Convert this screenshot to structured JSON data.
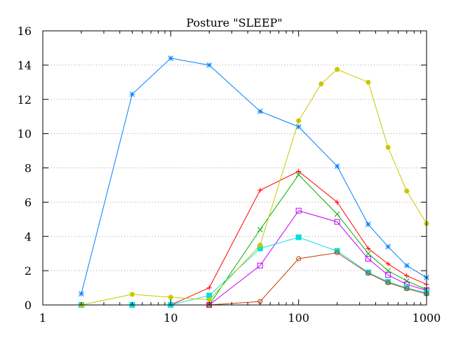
{
  "chart_data": {
    "type": "line",
    "title": "Posture \"SLEEP\"",
    "xlabel": "",
    "ylabel": "",
    "x_scale": "log",
    "xlim": [
      1,
      1000
    ],
    "ylim": [
      0,
      16
    ],
    "grid": {
      "y": true,
      "x": false,
      "style": "dotted"
    },
    "x_ticks": [
      {
        "value": 1,
        "label": "1"
      },
      {
        "value": 10,
        "label": "10"
      },
      {
        "value": 100,
        "label": "100"
      },
      {
        "value": 1000,
        "label": "1000"
      }
    ],
    "y_ticks": [
      {
        "value": 0,
        "label": "0"
      },
      {
        "value": 2,
        "label": "2"
      },
      {
        "value": 4,
        "label": "4"
      },
      {
        "value": 6,
        "label": "6"
      },
      {
        "value": 8,
        "label": "8"
      },
      {
        "value": 10,
        "label": "10"
      },
      {
        "value": 12,
        "label": "12"
      },
      {
        "value": 14,
        "label": "14"
      },
      {
        "value": 16,
        "label": "16"
      }
    ],
    "series": [
      {
        "color": "#ff0000",
        "marker": "plus",
        "points": [
          [
            10,
            0.0
          ],
          [
            20,
            1.0
          ],
          [
            50,
            6.7
          ],
          [
            100,
            7.8
          ],
          [
            200,
            6.0
          ],
          [
            350,
            3.3
          ],
          [
            500,
            2.4
          ],
          [
            700,
            1.7
          ],
          [
            1000,
            1.2
          ]
        ]
      },
      {
        "color": "#00b000",
        "marker": "cross",
        "points": [
          [
            10,
            0.0
          ],
          [
            20,
            0.0
          ],
          [
            50,
            4.4
          ],
          [
            100,
            7.6
          ],
          [
            200,
            5.3
          ],
          [
            350,
            3.0
          ],
          [
            500,
            2.0
          ],
          [
            700,
            1.4
          ],
          [
            1000,
            0.9
          ]
        ]
      },
      {
        "color": "#0080ff",
        "marker": "star",
        "points": [
          [
            2,
            0.65
          ],
          [
            5,
            12.3
          ],
          [
            10,
            14.4
          ],
          [
            20,
            14.0
          ],
          [
            50,
            11.3
          ],
          [
            100,
            10.4
          ],
          [
            200,
            8.1
          ],
          [
            350,
            4.7
          ],
          [
            500,
            3.4
          ],
          [
            700,
            2.3
          ],
          [
            1000,
            1.6
          ]
        ]
      },
      {
        "color": "#c000ff",
        "marker": "square-open",
        "points": [
          [
            20,
            0.0
          ],
          [
            50,
            2.3
          ],
          [
            100,
            5.5
          ],
          [
            200,
            4.85
          ],
          [
            350,
            2.7
          ],
          [
            500,
            1.75
          ],
          [
            700,
            1.2
          ],
          [
            1000,
            0.85
          ]
        ]
      },
      {
        "color": "#00e0e0",
        "marker": "square-filled",
        "points": [
          [
            2,
            0.0
          ],
          [
            5,
            0.0
          ],
          [
            10,
            0.0
          ],
          [
            20,
            0.55
          ],
          [
            50,
            3.3
          ],
          [
            100,
            3.95
          ],
          [
            200,
            3.15
          ],
          [
            350,
            1.9
          ],
          [
            500,
            1.35
          ],
          [
            700,
            1.0
          ],
          [
            1000,
            0.7
          ]
        ]
      },
      {
        "color": "#c04000",
        "marker": "circle-open",
        "points": [
          [
            20,
            0.0
          ],
          [
            50,
            0.2
          ],
          [
            100,
            2.7
          ],
          [
            200,
            3.05
          ],
          [
            350,
            1.85
          ],
          [
            500,
            1.3
          ],
          [
            700,
            0.95
          ],
          [
            1000,
            0.65
          ]
        ]
      },
      {
        "color": "#c8c800",
        "marker": "circle-filled",
        "points": [
          [
            2,
            0.0
          ],
          [
            5,
            0.62
          ],
          [
            10,
            0.45
          ],
          [
            20,
            0.3
          ],
          [
            50,
            3.5
          ],
          [
            100,
            10.75
          ],
          [
            150,
            12.9
          ],
          [
            200,
            13.75
          ],
          [
            350,
            13.0
          ],
          [
            500,
            9.2
          ],
          [
            700,
            6.65
          ],
          [
            1000,
            4.75
          ]
        ]
      }
    ]
  }
}
